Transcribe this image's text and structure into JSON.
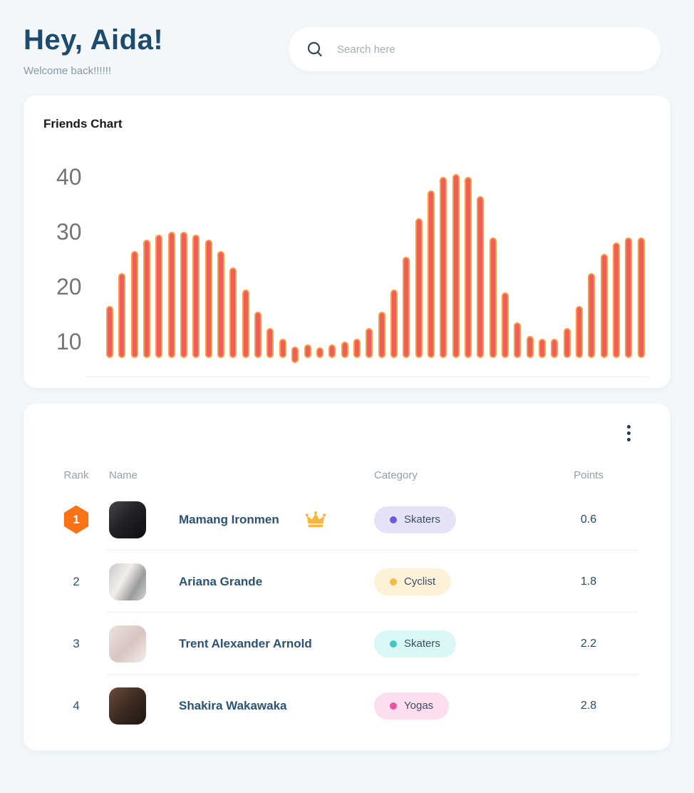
{
  "header": {
    "greeting": "Hey, Aida!",
    "subtitle": "Welcome back!!!!!!"
  },
  "search": {
    "placeholder": "Search here"
  },
  "chart_card": {
    "title": "Friends Chart"
  },
  "chart_data": {
    "type": "bar",
    "title": "Friends Chart",
    "xlabel": "",
    "ylabel": "",
    "x_labels_visible": false,
    "grid": false,
    "yticks": [
      10,
      20,
      30,
      40
    ],
    "ylim": [
      7.5,
      42
    ],
    "values": [
      17,
      23,
      27,
      29,
      30,
      30.5,
      30.5,
      30,
      29,
      27,
      24,
      20,
      16,
      13,
      11,
      10.5,
      10,
      9.5,
      10,
      10.5,
      11,
      13,
      16,
      20,
      26,
      33,
      38,
      40.5,
      41,
      40.5,
      37,
      29.5,
      19.5,
      14,
      11.5,
      11,
      11,
      13,
      17,
      23,
      26.5,
      28.5,
      29.5,
      29.5
    ],
    "dip_index": 15,
    "bar_color": "#f15d5d",
    "bar_border_color": "#f79d44"
  },
  "leaderboard": {
    "columns": [
      "Rank",
      "Name",
      "Category",
      "Points"
    ],
    "rows": [
      {
        "rank": "1",
        "name": "Mamang Ironmen",
        "category": "Skaters",
        "points": "0.6",
        "badge_bg": "#e6e3f9",
        "dot_color": "#6b5be0",
        "crown": true,
        "rank_badge": true
      },
      {
        "rank": "2",
        "name": "Ariana Grande",
        "category": "Cyclist",
        "points": "1.8",
        "badge_bg": "#fdf1d8",
        "dot_color": "#f6bb43",
        "crown": false,
        "rank_badge": false
      },
      {
        "rank": "3",
        "name": "Trent Alexander Arnold",
        "category": "Skaters",
        "points": "2.2",
        "badge_bg": "#d9f7f4",
        "dot_color": "#3fc8c1",
        "crown": false,
        "rank_badge": false
      },
      {
        "rank": "4",
        "name": "Shakira Wakawaka",
        "category": "Yogas",
        "points": "2.8",
        "badge_bg": "#fcdeee",
        "dot_color": "#f0519e",
        "crown": false,
        "rank_badge": false
      }
    ]
  },
  "icons": {
    "search": "magnifier",
    "menu": "kebab-vertical-dots",
    "rank1_crown": "gold-crown"
  },
  "colors": {
    "page_bg": "#f3f7fa",
    "heading": "#1d4a6d",
    "rank1_badge": "#f97316",
    "name_text": "#2b5277"
  }
}
